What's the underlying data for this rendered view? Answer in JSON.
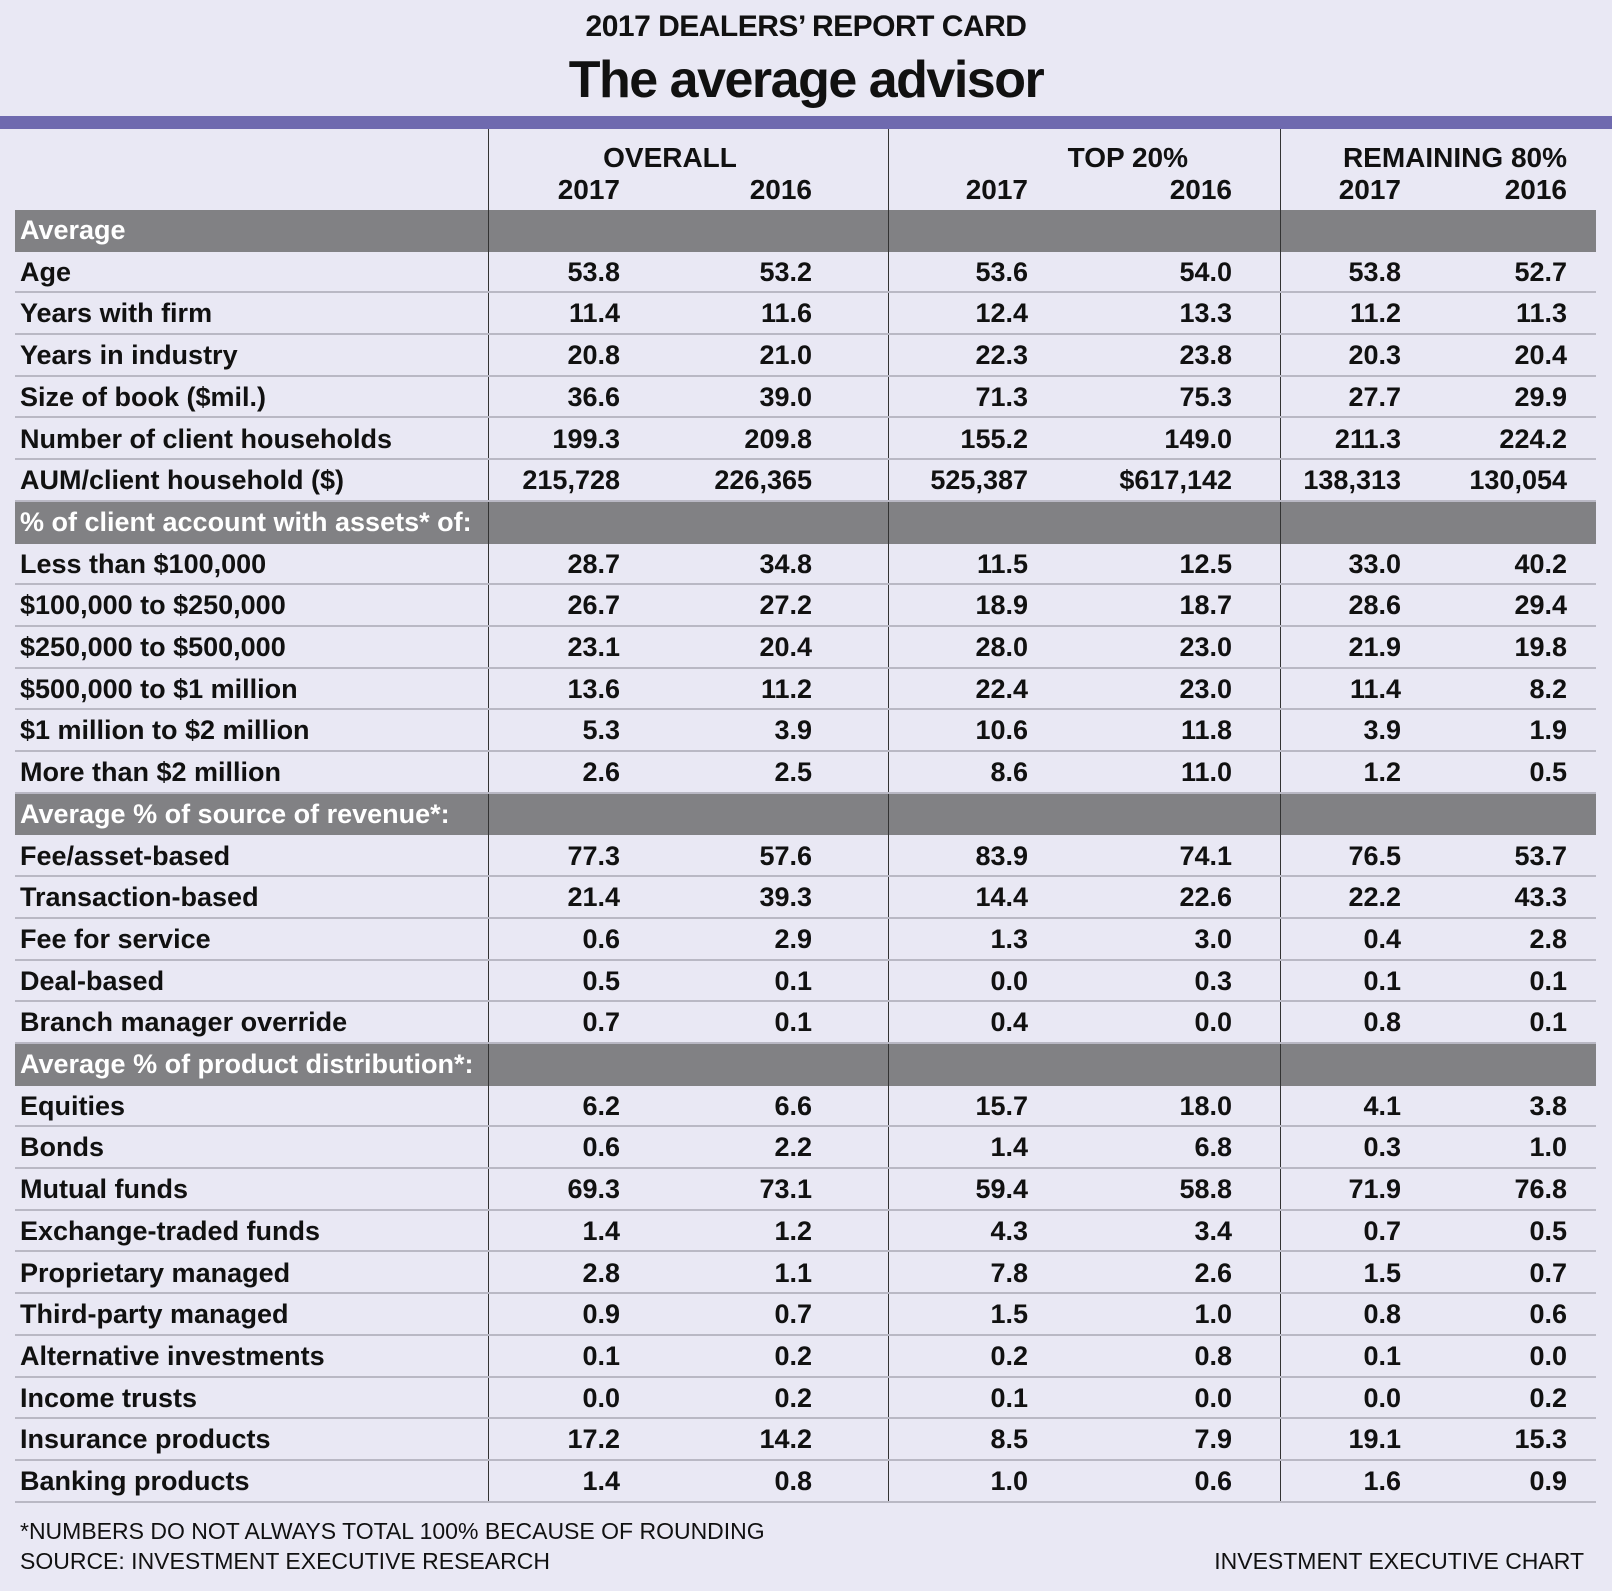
{
  "header": {
    "kicker": "2017 DEALERS’ REPORT CARD",
    "title": "The average advisor"
  },
  "colors": {
    "accent_bar": "#6f6aaf",
    "section_band": "#818184",
    "background": "#e9e8f4"
  },
  "chart_data": {
    "type": "table",
    "title": "The average advisor",
    "column_groups": [
      {
        "label": "OVERALL",
        "years": [
          "2017",
          "2016"
        ]
      },
      {
        "label": "TOP 20%",
        "years": [
          "2017",
          "2016"
        ]
      },
      {
        "label": "REMAINING 80%",
        "years": [
          "2017",
          "2016"
        ]
      }
    ],
    "sections": [
      {
        "label": "Average",
        "rows": [
          {
            "label": "Age",
            "values": [
              "53.8",
              "53.2",
              "53.6",
              "54.0",
              "53.8",
              "52.7"
            ]
          },
          {
            "label": "Years with firm",
            "values": [
              "11.4",
              "11.6",
              "12.4",
              "13.3",
              "11.2",
              "11.3"
            ]
          },
          {
            "label": "Years in industry",
            "values": [
              "20.8",
              "21.0",
              "22.3",
              "23.8",
              "20.3",
              "20.4"
            ]
          },
          {
            "label": "Size of book ($mil.)",
            "values": [
              "36.6",
              "39.0",
              "71.3",
              "75.3",
              "27.7",
              "29.9"
            ]
          },
          {
            "label": "Number of client households",
            "values": [
              "199.3",
              "209.8",
              "155.2",
              "149.0",
              "211.3",
              "224.2"
            ]
          },
          {
            "label": "AUM/client household ($)",
            "values": [
              "215,728",
              "226,365",
              "525,387",
              "$617,142",
              "138,313",
              "130,054"
            ]
          }
        ]
      },
      {
        "label": "% of client account with assets* of:",
        "rows": [
          {
            "label": "Less than $100,000",
            "values": [
              "28.7",
              "34.8",
              "11.5",
              "12.5",
              "33.0",
              "40.2"
            ]
          },
          {
            "label": "$100,000 to $250,000",
            "values": [
              "26.7",
              "27.2",
              "18.9",
              "18.7",
              "28.6",
              "29.4"
            ]
          },
          {
            "label": "$250,000 to $500,000",
            "values": [
              "23.1",
              "20.4",
              "28.0",
              "23.0",
              "21.9",
              "19.8"
            ]
          },
          {
            "label": "$500,000 to $1 million",
            "values": [
              "13.6",
              "11.2",
              "22.4",
              "23.0",
              "11.4",
              "8.2"
            ]
          },
          {
            "label": "$1 million to $2 million",
            "values": [
              "5.3",
              "3.9",
              "10.6",
              "11.8",
              "3.9",
              "1.9"
            ]
          },
          {
            "label": "More than $2 million",
            "values": [
              "2.6",
              "2.5",
              "8.6",
              "11.0",
              "1.2",
              "0.5"
            ]
          }
        ]
      },
      {
        "label": "Average % of source of revenue*:",
        "rows": [
          {
            "label": "Fee/asset-based",
            "values": [
              "77.3",
              "57.6",
              "83.9",
              "74.1",
              "76.5",
              "53.7"
            ]
          },
          {
            "label": "Transaction-based",
            "values": [
              "21.4",
              "39.3",
              "14.4",
              "22.6",
              "22.2",
              "43.3"
            ]
          },
          {
            "label": "Fee for service",
            "values": [
              "0.6",
              "2.9",
              "1.3",
              "3.0",
              "0.4",
              "2.8"
            ]
          },
          {
            "label": "Deal-based",
            "values": [
              "0.5",
              "0.1",
              "0.0",
              "0.3",
              "0.1",
              "0.1"
            ]
          },
          {
            "label": "Branch manager override",
            "values": [
              "0.7",
              "0.1",
              "0.4",
              "0.0",
              "0.8",
              "0.1"
            ]
          }
        ]
      },
      {
        "label": "Average % of product distribution*:",
        "rows": [
          {
            "label": "Equities",
            "values": [
              "6.2",
              "6.6",
              "15.7",
              "18.0",
              "4.1",
              "3.8"
            ]
          },
          {
            "label": "Bonds",
            "values": [
              "0.6",
              "2.2",
              "1.4",
              "6.8",
              "0.3",
              "1.0"
            ]
          },
          {
            "label": "Mutual funds",
            "values": [
              "69.3",
              "73.1",
              "59.4",
              "58.8",
              "71.9",
              "76.8"
            ]
          },
          {
            "label": "Exchange-traded funds",
            "values": [
              "1.4",
              "1.2",
              "4.3",
              "3.4",
              "0.7",
              "0.5"
            ]
          },
          {
            "label": "Proprietary managed",
            "values": [
              "2.8",
              "1.1",
              "7.8",
              "2.6",
              "1.5",
              "0.7"
            ]
          },
          {
            "label": "Third-party managed",
            "values": [
              "0.9",
              "0.7",
              "1.5",
              "1.0",
              "0.8",
              "0.6"
            ]
          },
          {
            "label": "Alternative investments",
            "values": [
              "0.1",
              "0.2",
              "0.2",
              "0.8",
              "0.1",
              "0.0"
            ]
          },
          {
            "label": "Income trusts",
            "values": [
              "0.0",
              "0.2",
              "0.1",
              "0.0",
              "0.0",
              "0.2"
            ]
          },
          {
            "label": "Insurance products",
            "values": [
              "17.2",
              "14.2",
              "8.5",
              "7.9",
              "19.1",
              "15.3"
            ]
          },
          {
            "label": "Banking products",
            "values": [
              "1.4",
              "0.8",
              "1.0",
              "0.6",
              "1.6",
              "0.9"
            ]
          }
        ]
      }
    ]
  },
  "footer": {
    "note": "*NUMBERS DO NOT ALWAYS TOTAL 100% BECAUSE OF ROUNDING",
    "source": "SOURCE: INVESTMENT EXECUTIVE RESEARCH",
    "credit": "INVESTMENT EXECUTIVE CHART"
  }
}
